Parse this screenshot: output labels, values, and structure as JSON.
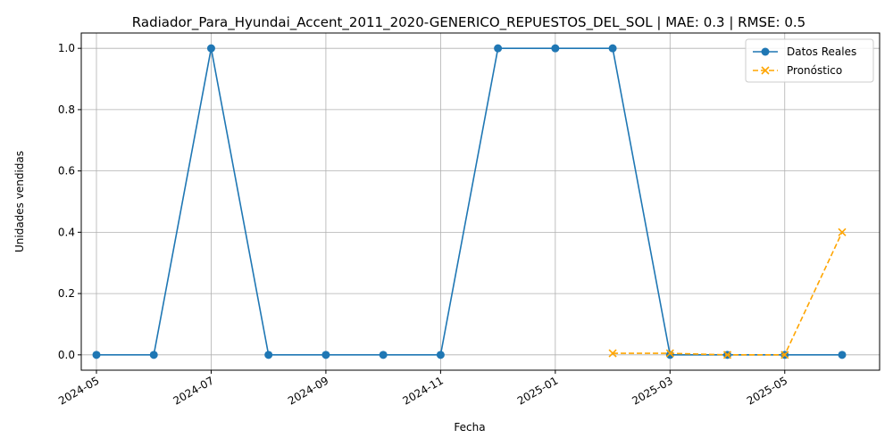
{
  "chart_data": {
    "type": "line",
    "title": "Radiador_Para_Hyundai_Accent_2011_2020-GENERICO_REPUESTOS_DEL_SOL | MAE: 0.3 | RMSE: 0.5",
    "xlabel": "Fecha",
    "ylabel": "Unidades vendidas",
    "ylim": [
      -0.05,
      1.05
    ],
    "grid": true,
    "legend_position": "top-right",
    "x_ticks": [
      "2024-05",
      "2024-07",
      "2024-09",
      "2024-11",
      "2025-01",
      "2025-03",
      "2025-05"
    ],
    "y_ticks": [
      "0.0",
      "0.2",
      "0.4",
      "0.6",
      "0.8",
      "1.0"
    ],
    "series": [
      {
        "name": "Datos Reales",
        "color": "#1f77b4",
        "marker": "circle",
        "line_style": "solid",
        "x": [
          "2024-05",
          "2024-06",
          "2024-07",
          "2024-08",
          "2024-09",
          "2024-10",
          "2024-11",
          "2024-12",
          "2025-01",
          "2025-02",
          "2025-03",
          "2025-04",
          "2025-05",
          "2025-06"
        ],
        "values": [
          0,
          0,
          1,
          0,
          0,
          0,
          0,
          1,
          1,
          1,
          0,
          0,
          0,
          0
        ]
      },
      {
        "name": "Pronóstico",
        "color": "#ffa500",
        "marker": "x",
        "line_style": "dashed",
        "x": [
          "2025-02",
          "2025-03",
          "2025-04",
          "2025-05",
          "2025-06"
        ],
        "values": [
          0.005,
          0.005,
          0.0,
          0.0,
          0.4
        ]
      }
    ]
  }
}
